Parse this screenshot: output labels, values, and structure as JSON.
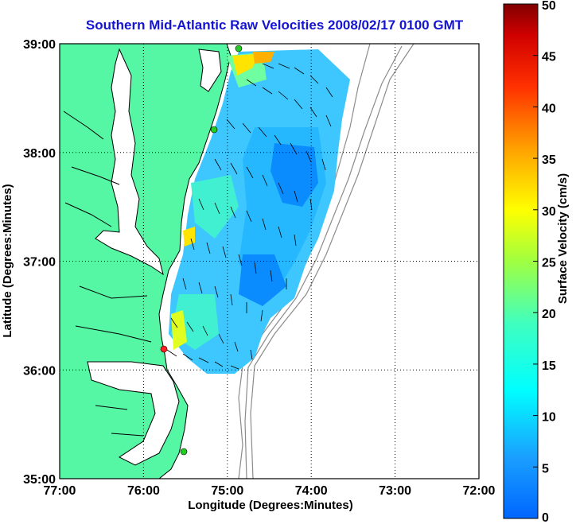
{
  "title": "Southern Mid-Atlantic Raw Velocities 2008/02/17 0100 GMT",
  "xlabel": "Longitude (Degrees:Minutes)",
  "ylabel": "Latitude (Degrees:Minutes)",
  "x_ticks": [
    "77:00",
    "76:00",
    "75:00",
    "74:00",
    "73:00",
    "72:00"
  ],
  "y_ticks": [
    "39:00",
    "38:00",
    "37:00",
    "36:00",
    "35:00"
  ],
  "colorbar": {
    "label": "Surface Velocity (cm/s)",
    "ticks": [
      "50",
      "45",
      "40",
      "35",
      "30",
      "25",
      "20",
      "15",
      "10",
      "5",
      "0"
    ],
    "range": [
      0,
      50
    ],
    "colormap": "jet"
  },
  "colors": {
    "title": "#1414d2",
    "land": "#55f7a5",
    "coastline": "#000000",
    "bathymetry": "#8c8c8c",
    "site_marker_active": "#22cc22",
    "site_marker_alert": "#ff2020"
  },
  "chart_data": {
    "type": "heatmap",
    "title": "Southern Mid-Atlantic Raw Velocities 2008/02/17 0100 GMT",
    "xlabel": "Longitude (Degrees:Minutes)",
    "ylabel": "Latitude (Degrees:Minutes)",
    "xlim": [
      -77,
      -72
    ],
    "ylim": [
      35,
      39
    ],
    "grid": true,
    "value_range": [
      0,
      50
    ],
    "colormap": "jet",
    "notes": "Surface velocity field with black arrows showing current direction"
  }
}
